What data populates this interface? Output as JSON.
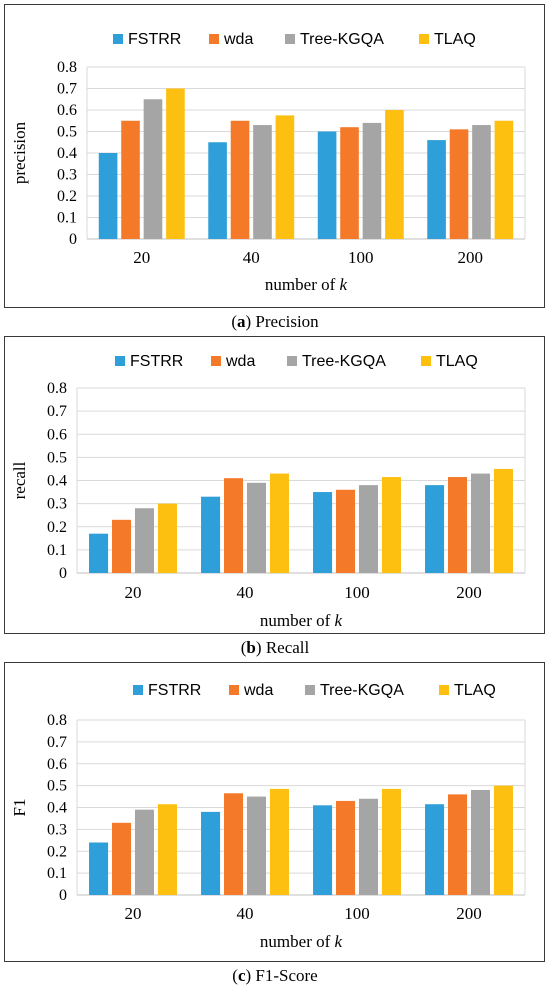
{
  "colors": {
    "FSTRR": "#2e9fd8",
    "wda": "#f47a2a",
    "Tree-KGQA": "#a5a5a5",
    "TLAQ": "#fdc010",
    "grid": "#d9d9d9",
    "axis": "#bfbfbf"
  },
  "chart_data": [
    {
      "type": "bar",
      "panel_letter": "a",
      "caption": "Precision",
      "ylabel": "precision",
      "xlabel_prefix": "number of ",
      "xlabel_var": "k",
      "categories": [
        "20",
        "40",
        "100",
        "200"
      ],
      "ylim": [
        0,
        0.8
      ],
      "yticks": [
        "0",
        "0.1",
        "0.2",
        "0.3",
        "0.4",
        "0.5",
        "0.6",
        "0.7",
        "0.8"
      ],
      "grid": true,
      "legend_position": "top",
      "series": [
        {
          "name": "FSTRR",
          "values": [
            0.4,
            0.45,
            0.5,
            0.46
          ]
        },
        {
          "name": "wda",
          "values": [
            0.55,
            0.55,
            0.52,
            0.51
          ]
        },
        {
          "name": "Tree-KGQA",
          "values": [
            0.65,
            0.53,
            0.54,
            0.53
          ]
        },
        {
          "name": "TLAQ",
          "values": [
            0.7,
            0.575,
            0.6,
            0.55
          ]
        }
      ]
    },
    {
      "type": "bar",
      "panel_letter": "b",
      "caption": "Recall",
      "ylabel": "recall",
      "xlabel_prefix": "number of ",
      "xlabel_var": "k",
      "categories": [
        "20",
        "40",
        "100",
        "200"
      ],
      "ylim": [
        0,
        0.8
      ],
      "yticks": [
        "0",
        "0.1",
        "0.2",
        "0.3",
        "0.4",
        "0.5",
        "0.6",
        "0.7",
        "0.8"
      ],
      "grid": true,
      "legend_position": "top",
      "series": [
        {
          "name": "FSTRR",
          "values": [
            0.17,
            0.33,
            0.35,
            0.38
          ]
        },
        {
          "name": "wda",
          "values": [
            0.23,
            0.41,
            0.36,
            0.415
          ]
        },
        {
          "name": "Tree-KGQA",
          "values": [
            0.28,
            0.39,
            0.38,
            0.43
          ]
        },
        {
          "name": "TLAQ",
          "values": [
            0.3,
            0.43,
            0.415,
            0.45
          ]
        }
      ]
    },
    {
      "type": "bar",
      "panel_letter": "c",
      "caption": "F1-Score",
      "ylabel": "F1",
      "xlabel_prefix": "number of ",
      "xlabel_var": "k",
      "categories": [
        "20",
        "40",
        "100",
        "200"
      ],
      "ylim": [
        0,
        0.8
      ],
      "yticks": [
        "0",
        "0.1",
        "0.2",
        "0.3",
        "0.4",
        "0.5",
        "0.6",
        "0.7",
        "0.8"
      ],
      "grid": true,
      "legend_position": "top",
      "series": [
        {
          "name": "FSTRR",
          "values": [
            0.24,
            0.38,
            0.41,
            0.415
          ]
        },
        {
          "name": "wda",
          "values": [
            0.33,
            0.465,
            0.43,
            0.46
          ]
        },
        {
          "name": "Tree-KGQA",
          "values": [
            0.39,
            0.45,
            0.44,
            0.48
          ]
        },
        {
          "name": "TLAQ",
          "values": [
            0.415,
            0.485,
            0.485,
            0.5
          ]
        }
      ]
    }
  ]
}
